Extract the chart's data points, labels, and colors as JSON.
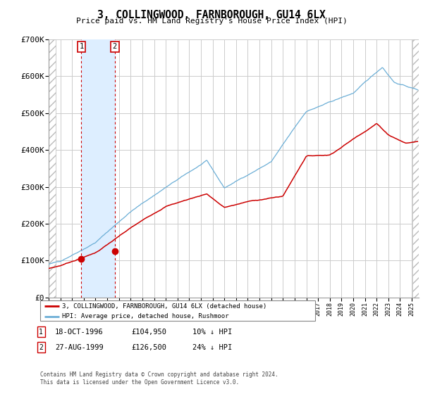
{
  "title": "3, COLLINGWOOD, FARNBOROUGH, GU14 6LX",
  "subtitle": "Price paid vs. HM Land Registry's House Price Index (HPI)",
  "legend_line1": "3, COLLINGWOOD, FARNBOROUGH, GU14 6LX (detached house)",
  "legend_line2": "HPI: Average price, detached house, Rushmoor",
  "transaction1_date": "18-OCT-1996",
  "transaction1_price": 104950,
  "transaction1_hpi": "10% ↓ HPI",
  "transaction2_date": "27-AUG-1999",
  "transaction2_price": 126500,
  "transaction2_hpi": "24% ↓ HPI",
  "footnote": "Contains HM Land Registry data © Crown copyright and database right 2024.\nThis data is licensed under the Open Government Licence v3.0.",
  "hpi_color": "#6baed6",
  "price_color": "#cc0000",
  "marker_color": "#cc0000",
  "vline_color": "#cc0000",
  "shade_color": "#ddeeff",
  "ylim": [
    0,
    700000
  ],
  "yticks": [
    0,
    100000,
    200000,
    300000,
    400000,
    500000,
    600000,
    700000
  ],
  "ytick_labels": [
    "£0",
    "£100K",
    "£200K",
    "£300K",
    "£400K",
    "£500K",
    "£600K",
    "£700K"
  ],
  "x_start_year": 1994,
  "x_end_year": 2025,
  "transaction1_year": 1996.79,
  "transaction2_year": 1999.65
}
